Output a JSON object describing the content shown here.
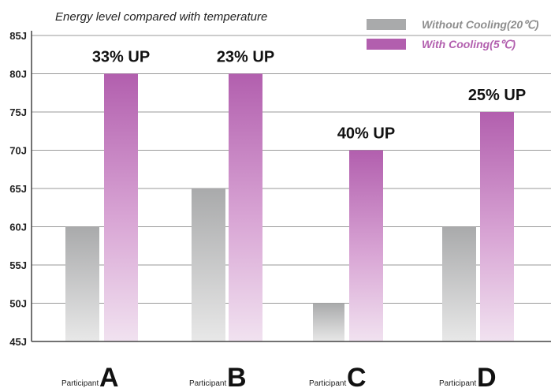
{
  "chart_data": {
    "type": "bar",
    "subtitle": "Energy level compared with temperature",
    "category_prefix": "Participant",
    "categories": [
      "A",
      "B",
      "C",
      "D"
    ],
    "series": [
      {
        "name": "Without Cooling(20℃)",
        "values": [
          60,
          65,
          50,
          60
        ],
        "color": "#a9aaab"
      },
      {
        "name": "With Cooling(5℃)",
        "values": [
          80,
          80,
          70,
          75
        ],
        "color": "#b25fae"
      }
    ],
    "annotations": [
      "33% UP",
      "23% UP",
      "40% UP",
      "25% UP"
    ],
    "yticks": [
      "45J",
      "50J",
      "55J",
      "60J",
      "65J",
      "70J",
      "75J",
      "80J",
      "85J"
    ],
    "ylim": [
      45,
      85
    ],
    "ytick_values": [
      45,
      50,
      55,
      60,
      65,
      70,
      75,
      80,
      85
    ],
    "grid": true,
    "legend_position": "top-right"
  }
}
